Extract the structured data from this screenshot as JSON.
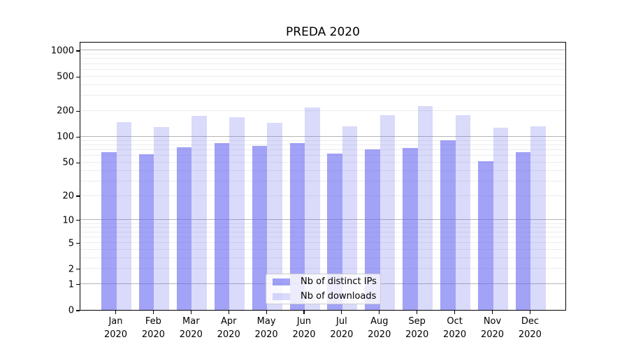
{
  "page": {
    "background": "#ffffff"
  },
  "chart_data": {
    "type": "bar",
    "title": "PREDA 2020",
    "xlabel": "",
    "ylabel": "",
    "categories": [
      "Jan 2020",
      "Feb 2020",
      "Mar 2020",
      "Apr 2020",
      "May 2020",
      "Jun 2020",
      "Jul 2020",
      "Aug 2020",
      "Sep 2020",
      "Oct 2020",
      "Nov 2020",
      "Dec 2020"
    ],
    "series": [
      {
        "name": "Nb of distinct IPs",
        "color": "rgba(100,100,240,0.60)",
        "values": [
          65,
          62,
          75,
          84,
          77,
          83,
          63,
          70,
          74,
          90,
          51,
          66
        ]
      },
      {
        "name": "Nb of downloads",
        "color": "rgba(100,100,240,0.24)",
        "values": [
          148,
          129,
          175,
          168,
          143,
          216,
          130,
          178,
          226,
          178,
          126,
          131
        ]
      }
    ],
    "yscale": "log1p (y position proportional to log10(1+value), linear 0-1 region)",
    "yticks": [
      0,
      1,
      2,
      5,
      10,
      20,
      50,
      100,
      200,
      500,
      1000
    ],
    "ylim": [
      0,
      1270
    ],
    "grid": {
      "orientation": "horizontal",
      "minor_color": "#ececec",
      "major_color": "#b4b4b4",
      "major_at": [
        1,
        10,
        100,
        1000
      ]
    },
    "legend": {
      "position": "lower-center-inside"
    },
    "frame_color": "#000000"
  }
}
